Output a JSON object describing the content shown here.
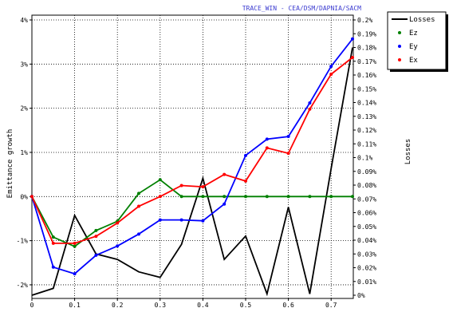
{
  "banner": "TRACE_WIN - CEA/DSM/DAPNIA/SACM",
  "chart_data": {
    "type": "line",
    "xlabel": "",
    "ylabel": "Emittance growth",
    "y2label": "Losses",
    "xlim": [
      0,
      0.75
    ],
    "ylim": [
      -2.2,
      4.0
    ],
    "y2lim": [
      0,
      0.2
    ],
    "x_ticks": [
      "0",
      "0.1",
      "0.2",
      "0.3",
      "0.4",
      "0.5",
      "0.6",
      "0.7"
    ],
    "y_ticks": [
      "-2%",
      "-1%",
      "0%",
      "1%",
      "2%",
      "3%",
      "4%"
    ],
    "y2_ticks": [
      "0%",
      "0.01%",
      "0.02%",
      "0.03%",
      "0.04%",
      "0.05%",
      "0.06%",
      "0.07%",
      "0.08%",
      "0.09%",
      "0.1%",
      "0.11%",
      "0.12%",
      "0.13%",
      "0.14%",
      "0.15%",
      "0.16%",
      "0.17%",
      "0.18%",
      "0.19%",
      "0.2%"
    ],
    "grid": true,
    "legend_position": "top-right, outside plot",
    "series": [
      {
        "name": "Losses",
        "color": "#000000",
        "markers": false,
        "axis": "right",
        "x": [
          0,
          0.05,
          0.1,
          0.15,
          0.2,
          0.25,
          0.3,
          0.35,
          0.4,
          0.45,
          0.5,
          0.55,
          0.6,
          0.65,
          0.7,
          0.75
        ],
        "y": [
          0.0,
          0.005,
          0.058,
          0.03,
          0.026,
          0.017,
          0.013,
          0.037,
          0.085,
          0.026,
          0.043,
          0.001,
          0.064,
          0.001,
          0.092,
          0.18
        ]
      },
      {
        "name": "Ez",
        "color": "#008000",
        "markers": true,
        "axis": "left",
        "x": [
          0,
          0.05,
          0.1,
          0.15,
          0.2,
          0.25,
          0.3,
          0.35,
          0.4,
          0.45,
          0.5,
          0.55,
          0.6,
          0.65,
          0.7,
          0.75
        ],
        "y": [
          0.0,
          -0.92,
          -1.13,
          -0.77,
          -0.56,
          0.07,
          0.38,
          0.0,
          0.0,
          0.0,
          0.0,
          0.0,
          0.0,
          0.0,
          0.0,
          0.0
        ]
      },
      {
        "name": "Ey",
        "color": "#0000ff",
        "markers": true,
        "axis": "left",
        "x": [
          0,
          0.05,
          0.1,
          0.15,
          0.2,
          0.25,
          0.3,
          0.35,
          0.4,
          0.45,
          0.5,
          0.55,
          0.6,
          0.65,
          0.7,
          0.75
        ],
        "y": [
          0.0,
          -1.6,
          -1.75,
          -1.33,
          -1.12,
          -0.85,
          -0.53,
          -0.53,
          -0.55,
          -0.17,
          0.93,
          1.3,
          1.36,
          2.12,
          2.95,
          3.57
        ]
      },
      {
        "name": "Ex",
        "color": "#ff0000",
        "markers": true,
        "axis": "left",
        "x": [
          0,
          0.05,
          0.1,
          0.15,
          0.2,
          0.25,
          0.3,
          0.35,
          0.4,
          0.45,
          0.5,
          0.55,
          0.6,
          0.65,
          0.7,
          0.75
        ],
        "y": [
          0.0,
          -1.06,
          -1.06,
          -0.9,
          -0.6,
          -0.22,
          0.0,
          0.25,
          0.22,
          0.5,
          0.35,
          1.1,
          0.98,
          1.98,
          2.77,
          3.15
        ]
      }
    ]
  }
}
